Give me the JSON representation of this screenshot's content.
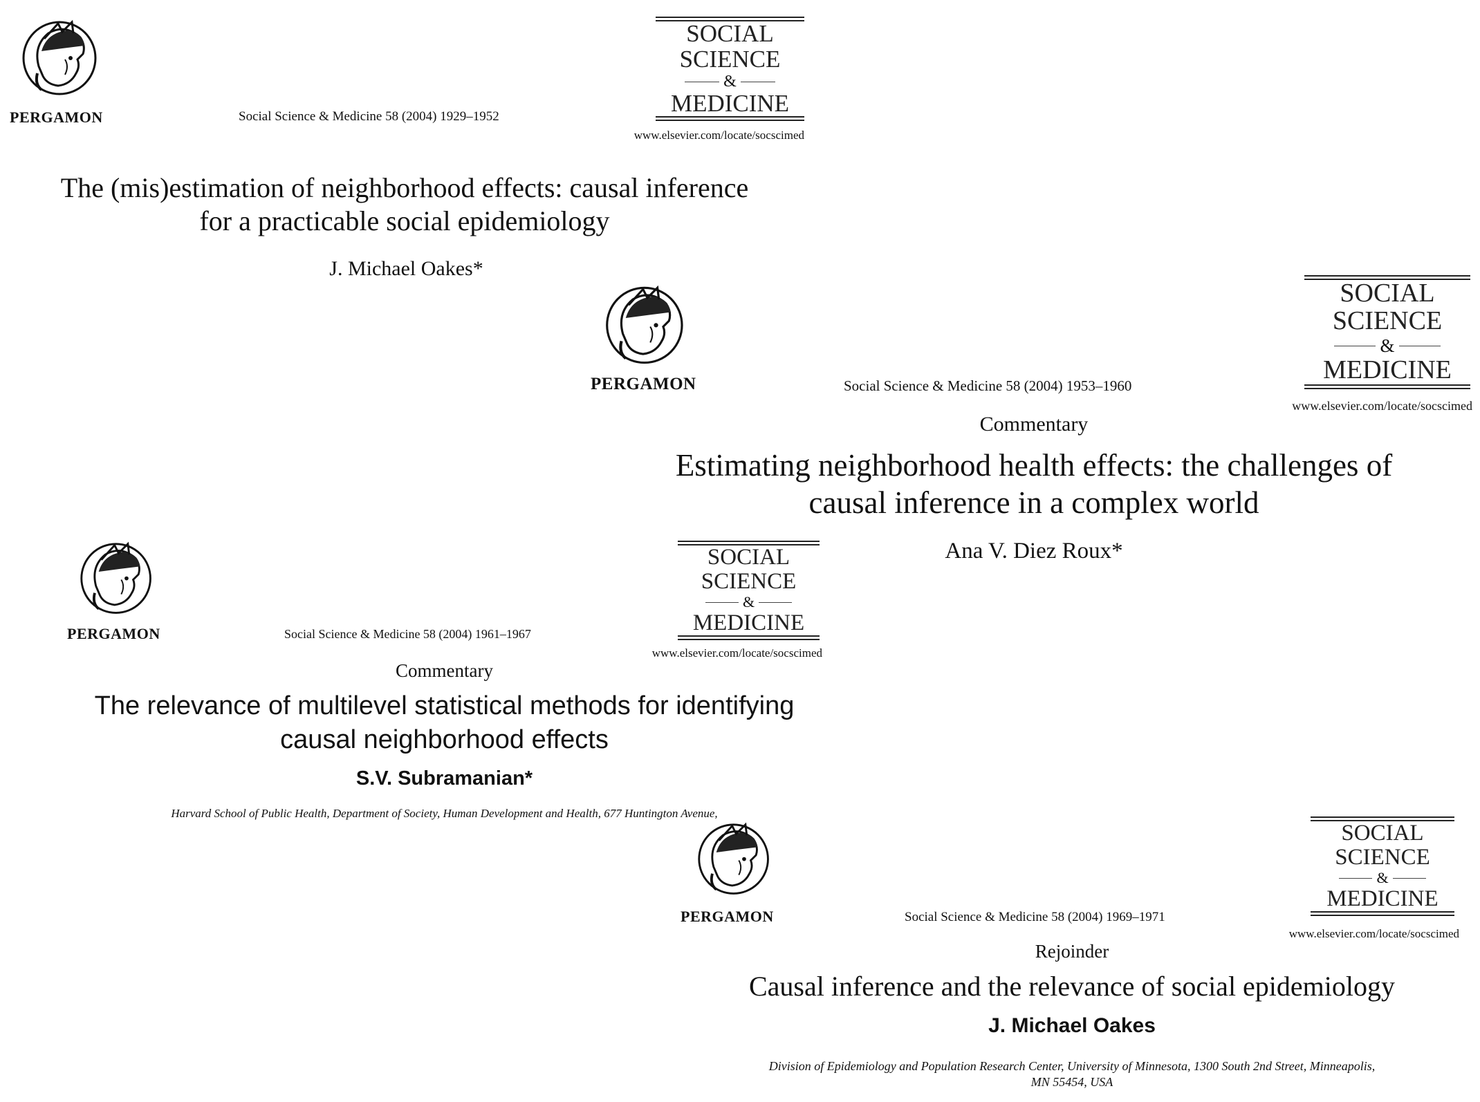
{
  "papers": [
    {
      "publisher": "PERGAMON",
      "citation": "Social Science & Medicine 58 (2004) 1929–1952",
      "masthead": {
        "line1": "SOCIAL",
        "line2": "SCIENCE",
        "amp": "&",
        "line3": "MEDICINE"
      },
      "url": "www.elsevier.com/locate/socscimed",
      "title_line1": "The (mis)estimation of neighborhood effects: causal inference",
      "title_line2": "for a practicable social epidemiology",
      "author": "J. Michael Oakes*"
    },
    {
      "publisher": "PERGAMON",
      "citation": "Social Science & Medicine 58 (2004) 1953–1960",
      "masthead": {
        "line1": "SOCIAL",
        "line2": "SCIENCE",
        "amp": "&",
        "line3": "MEDICINE"
      },
      "url": "www.elsevier.com/locate/socscimed",
      "label": "Commentary",
      "title_line1": "Estimating neighborhood health effects: the challenges of",
      "title_line2": "causal inference in a complex world",
      "author": "Ana V. Diez Roux*"
    },
    {
      "publisher": "PERGAMON",
      "citation": "Social Science & Medicine 58 (2004) 1961–1967",
      "masthead": {
        "line1": "SOCIAL",
        "line2": "SCIENCE",
        "amp": "&",
        "line3": "MEDICINE"
      },
      "url": "www.elsevier.com/locate/socscimed",
      "label": "Commentary",
      "title_line1": "The relevance of multilevel statistical methods for identifying",
      "title_line2": "causal neighborhood effects",
      "author": "S.V. Subramanian*",
      "affiliation_line1": "Harvard School of Public Health, Department of Society, Human Development and Health, 677 Huntington Avenue,"
    },
    {
      "publisher": "PERGAMON",
      "citation": "Social Science & Medicine 58 (2004) 1969–1971",
      "masthead": {
        "line1": "SOCIAL",
        "line2": "SCIENCE",
        "amp": "&",
        "line3": "MEDICINE"
      },
      "url": "www.elsevier.com/locate/socscimed",
      "label": "Rejoinder",
      "title_line1": "Causal inference and the relevance of social epidemiology",
      "author": "J. Michael Oakes",
      "affiliation_line1": "Division of Epidemiology and Population Research Center, University of Minnesota, 1300 South 2nd Street, Minneapolis,",
      "affiliation_line2": "MN 55454, USA"
    }
  ],
  "icons": {
    "emblem": "pergamon-helmeted-head-emblem"
  }
}
